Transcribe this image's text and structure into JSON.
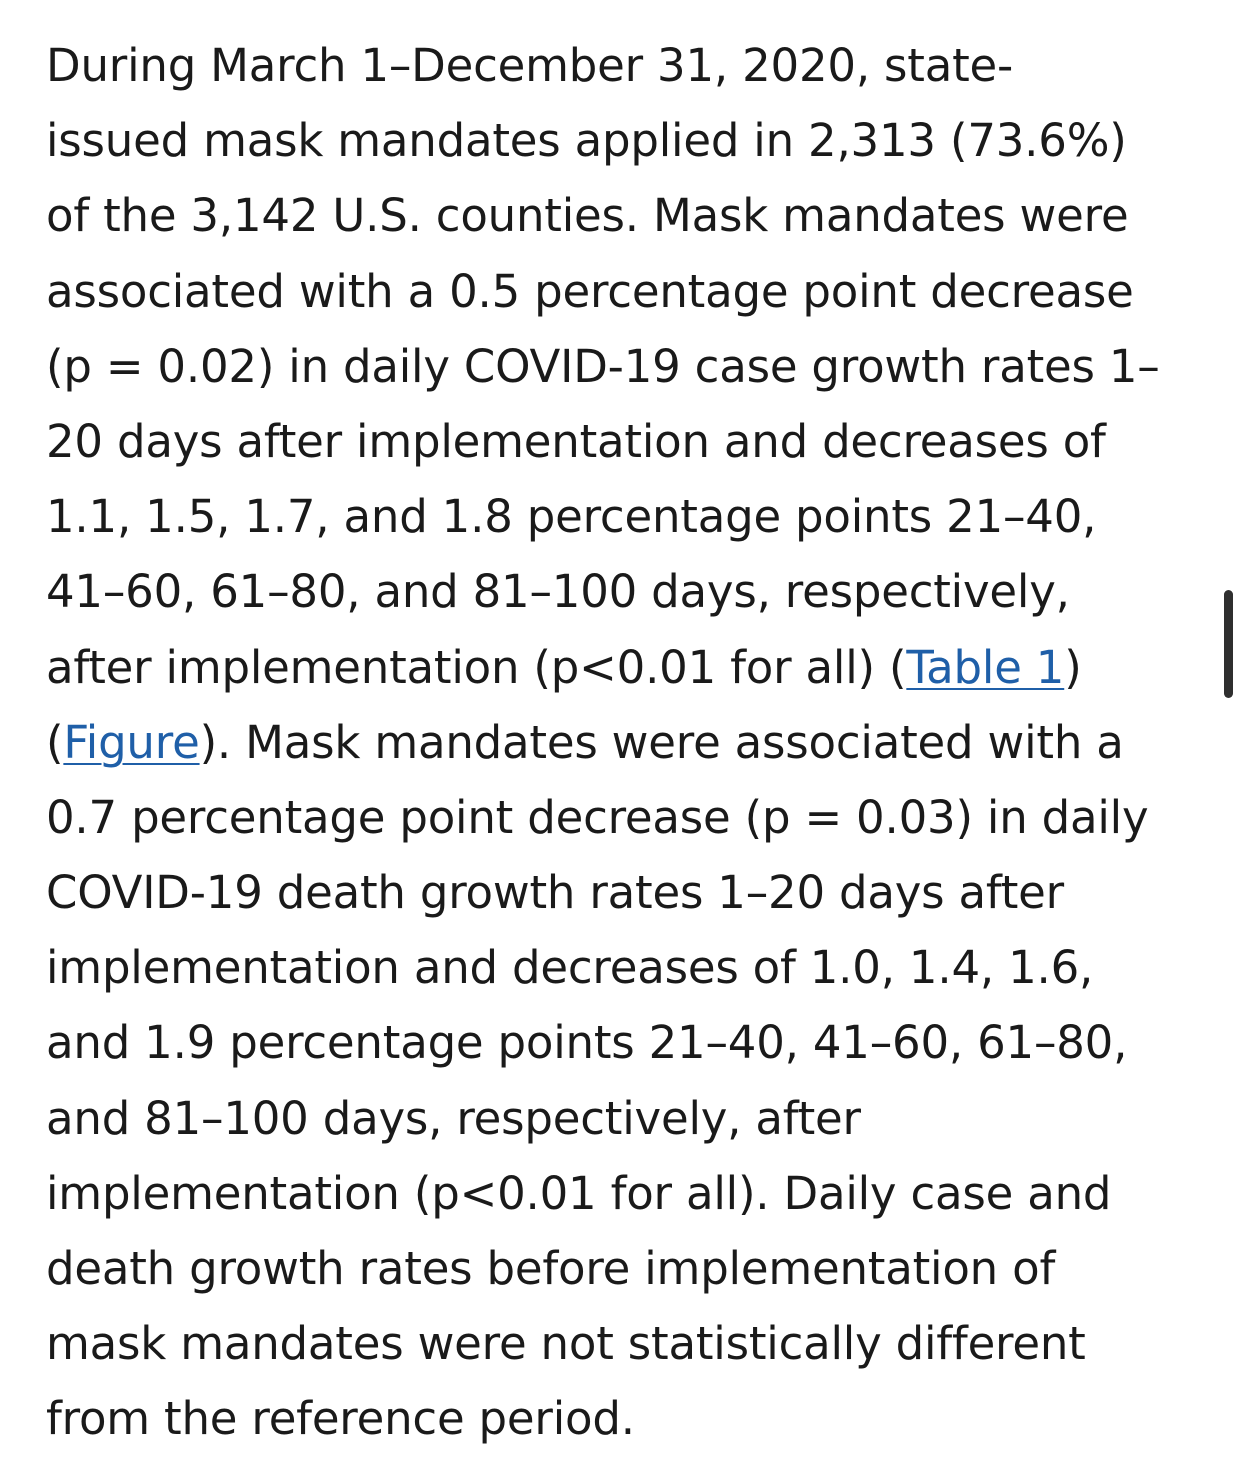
{
  "article": {
    "lines": [
      [
        "During March 1–December 31, 2020, state-"
      ],
      [
        "issued mask mandates applied in 2,313 (73.6%)"
      ],
      [
        "of the 3,142 U.S. counties. Mask mandates were"
      ],
      [
        "associated with a 0.5 percentage point decrease"
      ],
      [
        "(p = 0.02) in daily COVID-19 case growth rates 1–"
      ],
      [
        "20 days after implementation and decreases of"
      ],
      [
        "1.1, 1.5, 1.7, and 1.8 percentage points 21–40,"
      ],
      [
        "41–60, 61–80, and 81–100 days, respectively,"
      ],
      [
        "after implementation (p<0.01 for all) (",
        {
          "link": "Table 1"
        },
        ")"
      ],
      [
        "(",
        {
          "link": "Figure"
        },
        "). Mask mandates were associated with a"
      ],
      [
        "0.7 percentage point decrease (p = 0.03) in daily"
      ],
      [
        "COVID-19 death growth rates 1–20 days after"
      ],
      [
        "implementation and decreases of 1.0, 1.4, 1.6,"
      ],
      [
        "and 1.9 percentage points 21–40, 41–60, 61–80,"
      ],
      [
        "and 81–100 days, respectively, after"
      ],
      [
        "implementation (p<0.01 for all). Daily case and"
      ],
      [
        "death growth rates before implementation of"
      ],
      [
        "mask mandates were not statistically different"
      ],
      [
        "from the reference period."
      ]
    ]
  },
  "colors": {
    "text": "#1a1a1a",
    "link": "#1f5fa8",
    "scrollbar": "#2f2f2f"
  }
}
